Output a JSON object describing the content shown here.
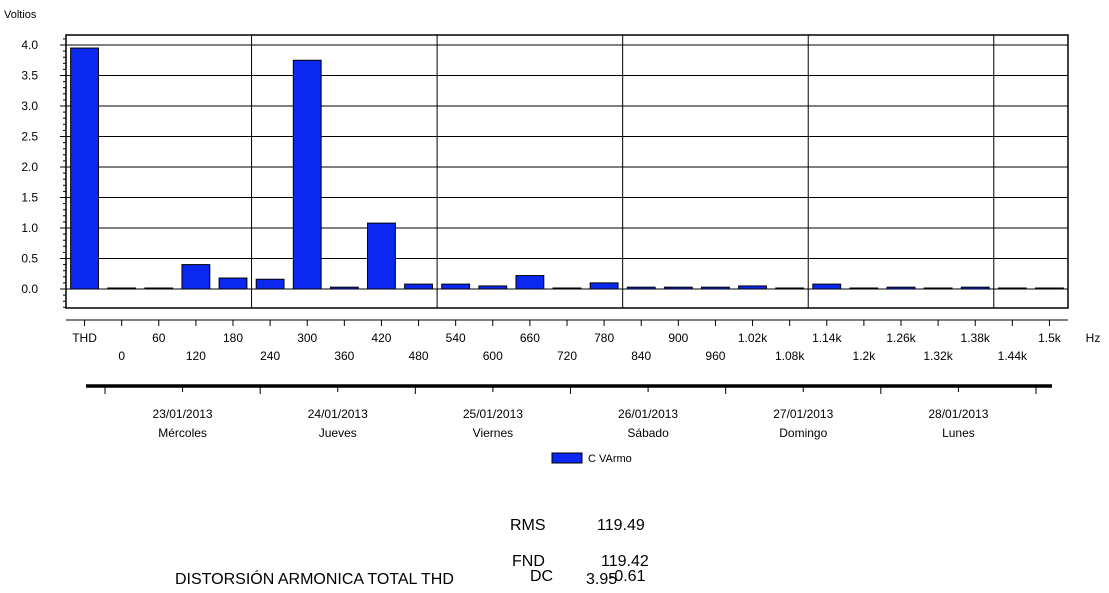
{
  "chart_data": {
    "type": "bar",
    "ylabel": "Voltios",
    "xunit": "Hz",
    "ylim": [
      -0.3,
      4.2
    ],
    "yticks": [
      "0.0",
      "0.5",
      "1.0",
      "1.5",
      "2.0",
      "2.5",
      "3.0",
      "3.5",
      "4.0"
    ],
    "categories": [
      "THD",
      "0",
      "60",
      "120",
      "180",
      "240",
      "300",
      "360",
      "420",
      "480",
      "540",
      "600",
      "660",
      "720",
      "780",
      "840",
      "900",
      "960",
      "1.02k",
      "1.08k",
      "1.14k",
      "1.2k",
      "1.26k",
      "1.32k",
      "1.38k",
      "1.44k",
      "1.5k"
    ],
    "series": [
      {
        "name": "C VArmo",
        "color": "#0a28f0",
        "values": [
          3.95,
          0.0,
          0.0,
          0.4,
          0.18,
          0.16,
          3.75,
          0.03,
          1.08,
          0.08,
          0.08,
          0.05,
          0.22,
          0.0,
          0.1,
          0.03,
          0.03,
          0.03,
          0.05,
          0.0,
          0.08,
          0.0,
          0.03,
          0.0,
          0.03,
          0.0,
          0.0
        ]
      }
    ],
    "dates": [
      {
        "date": "23/01/2013",
        "day": "Mércoles"
      },
      {
        "date": "24/01/2013",
        "day": "Jueves"
      },
      {
        "date": "25/01/2013",
        "day": "Viernes"
      },
      {
        "date": "26/01/2013",
        "day": "Sábado"
      },
      {
        "date": "27/01/2013",
        "day": "Domingo"
      },
      {
        "date": "28/01/2013",
        "day": "Lunes"
      }
    ],
    "legend_position": "bottom-center",
    "grid": true
  },
  "stats": {
    "rms_label": "RMS",
    "rms_value": "119.49",
    "fnd_label": "FND",
    "fnd_value": "119.42",
    "dc_label": "DC",
    "dc_value": "-0.61",
    "thd_label": "DISTORSIÓN ARMONICA TOTAL THD",
    "thd_value": "3.95"
  }
}
